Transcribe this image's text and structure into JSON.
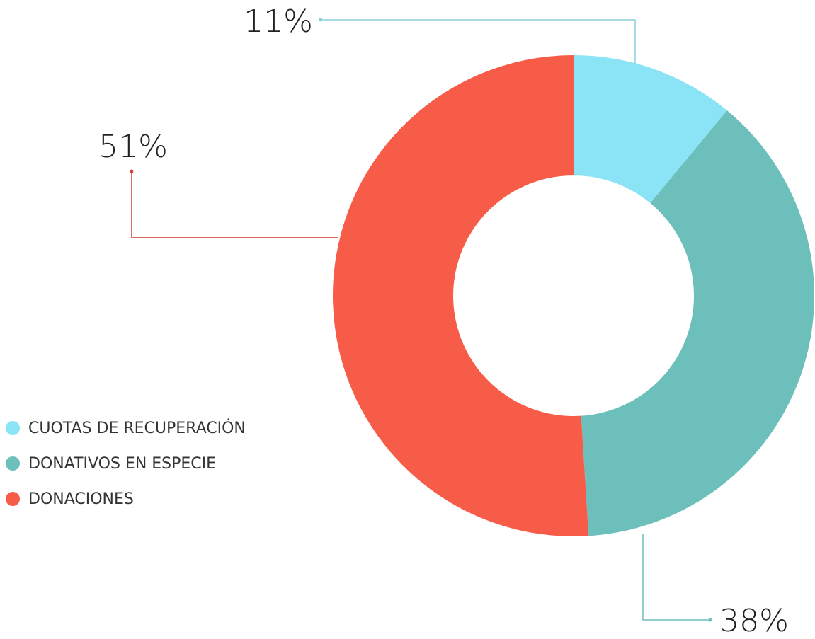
{
  "chart_data": {
    "type": "donut",
    "categories": [
      "CUOTAS DE RECUPERACIÓN",
      "DONATIVOS EN ESPECIE",
      "DONACIONES"
    ],
    "values": [
      11,
      38,
      51
    ],
    "value_labels": [
      "11%",
      "38%",
      "51%"
    ],
    "colors": [
      "#8be4f5",
      "#6dbfbb",
      "#f75c48"
    ],
    "legend": "left"
  }
}
